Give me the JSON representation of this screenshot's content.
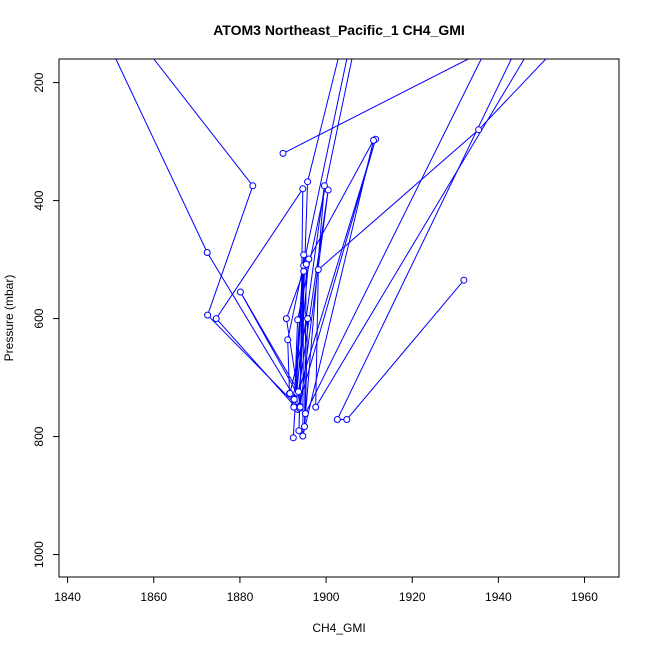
{
  "chart_data": {
    "type": "line",
    "title": "ATOM3 Northeast_Pacific_1 CH4_GMI",
    "xlabel": "CH4_GMI",
    "ylabel": "Pressure (mbar)",
    "xlim": [
      1838,
      1968
    ],
    "ylim": [
      1038,
      160
    ],
    "y_reversed": true,
    "x_ticks": [
      1840,
      1860,
      1880,
      1900,
      1920,
      1940,
      1960
    ],
    "y_ticks": [
      200,
      400,
      600,
      800,
      1000
    ],
    "grid": false,
    "legend": "none",
    "colors": {
      "series": "#0000ff",
      "axis": "#000000",
      "background": "#ffffff"
    },
    "series": [
      {
        "points": [
          {
            "x": 1851.2,
            "y": 160,
            "offscale": true
          },
          {
            "x": 1872.4,
            "y": 488
          },
          {
            "x": 1894.0,
            "y": 749
          },
          {
            "x": 1894.6,
            "y": 380
          },
          {
            "x": 1874.5,
            "y": 600
          },
          {
            "x": 1893.4,
            "y": 754
          },
          {
            "x": 1911.5,
            "y": 296
          },
          {
            "x": 1892.6,
            "y": 748
          },
          {
            "x": 1893.4,
            "y": 602
          },
          {
            "x": 1906.0,
            "y": 160,
            "offscale": true
          }
        ]
      },
      {
        "points": [
          {
            "x": 1860.0,
            "y": 160,
            "offscale": true
          },
          {
            "x": 1883.0,
            "y": 375
          },
          {
            "x": 1872.5,
            "y": 594
          },
          {
            "x": 1893.8,
            "y": 752
          },
          {
            "x": 1894.8,
            "y": 510
          },
          {
            "x": 1892.4,
            "y": 802
          },
          {
            "x": 1894.8,
            "y": 492
          },
          {
            "x": 1892.6,
            "y": 737
          },
          {
            "x": 1891.5,
            "y": 727
          },
          {
            "x": 1891.1,
            "y": 636
          },
          {
            "x": 1904.8,
            "y": 160,
            "offscale": true
          }
        ]
      },
      {
        "points": [
          {
            "x": 1902.8,
            "y": 160,
            "offscale": true
          },
          {
            "x": 1895.7,
            "y": 368
          },
          {
            "x": 1893.7,
            "y": 790
          },
          {
            "x": 1894.8,
            "y": 520
          },
          {
            "x": 1894.6,
            "y": 799
          },
          {
            "x": 1911.0,
            "y": 298
          },
          {
            "x": 1896.0,
            "y": 499
          },
          {
            "x": 1893.2,
            "y": 726
          },
          {
            "x": 1880.1,
            "y": 555
          },
          {
            "x": 1893.6,
            "y": 724
          },
          {
            "x": 1900.5,
            "y": 382
          },
          {
            "x": 1894.0,
            "y": 750
          },
          {
            "x": 1890.8,
            "y": 600
          },
          {
            "x": 1895.4,
            "y": 508
          },
          {
            "x": 1895.0,
            "y": 783
          },
          {
            "x": 1899.6,
            "y": 375
          },
          {
            "x": 1892.5,
            "y": 750
          },
          {
            "x": 1891.6,
            "y": 727
          },
          {
            "x": 1895.7,
            "y": 600
          },
          {
            "x": 1895.2,
            "y": 761
          },
          {
            "x": 1936.0,
            "y": 160,
            "offscale": true
          }
        ]
      },
      {
        "points": [
          {
            "x": 1890.0,
            "y": 320
          },
          {
            "x": 1933.0,
            "y": 160,
            "offscale": true
          }
        ]
      },
      {
        "points": [
          {
            "x": 1946.0,
            "y": 160,
            "offscale": true
          },
          {
            "x": 1897.6,
            "y": 750
          },
          {
            "x": 1898.2,
            "y": 517
          },
          {
            "x": 1935.4,
            "y": 280
          },
          {
            "x": 1951.0,
            "y": 160,
            "offscale": true
          }
        ]
      },
      {
        "points": [
          {
            "x": 1943.0,
            "y": 160,
            "offscale": true
          },
          {
            "x": 1902.6,
            "y": 771
          },
          {
            "x": 1904.8,
            "y": 771
          },
          {
            "x": 1932.0,
            "y": 535
          }
        ]
      }
    ]
  }
}
